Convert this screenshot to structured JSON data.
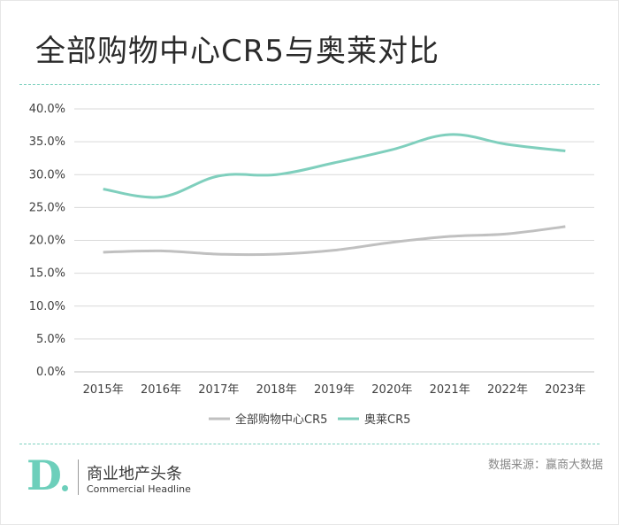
{
  "title": "全部购物中心CR5与奥莱对比",
  "colors": {
    "accent": "#6dcfbb",
    "series_all_malls": "#c0c0c0",
    "series_outlets": "#7fcfbd",
    "grid": "#d9d9d9"
  },
  "chart_data": {
    "type": "line",
    "title": "全部购物中心CR5与奥莱对比",
    "categories": [
      "2015年",
      "2016年",
      "2017年",
      "2018年",
      "2019年",
      "2020年",
      "2021年",
      "2022年",
      "2023年"
    ],
    "series": [
      {
        "name": "全部购物中心CR5",
        "color": "#c0c0c0",
        "values": [
          18.2,
          18.4,
          17.9,
          17.9,
          18.5,
          19.7,
          20.6,
          21.0,
          22.1
        ]
      },
      {
        "name": "奥莱CR5",
        "color": "#7fcfbd",
        "values": [
          27.8,
          26.6,
          29.8,
          30.0,
          31.8,
          33.8,
          36.1,
          34.6,
          33.6
        ]
      }
    ],
    "ylim": [
      0,
      40
    ],
    "yticks": [
      0,
      5,
      10,
      15,
      20,
      25,
      30,
      35,
      40
    ],
    "ytick_labels": [
      "0.0%",
      "5.0%",
      "10.0%",
      "15.0%",
      "20.0%",
      "25.0%",
      "30.0%",
      "35.0%",
      "40.0%"
    ],
    "xlabel": "",
    "ylabel": "",
    "grid": true,
    "legend": "bottom-center"
  },
  "branding": {
    "logo_letter": "D",
    "name_cn": "商业地产头条",
    "name_en": "Commercial Headline"
  },
  "source": "数据来源：赢商大数据"
}
